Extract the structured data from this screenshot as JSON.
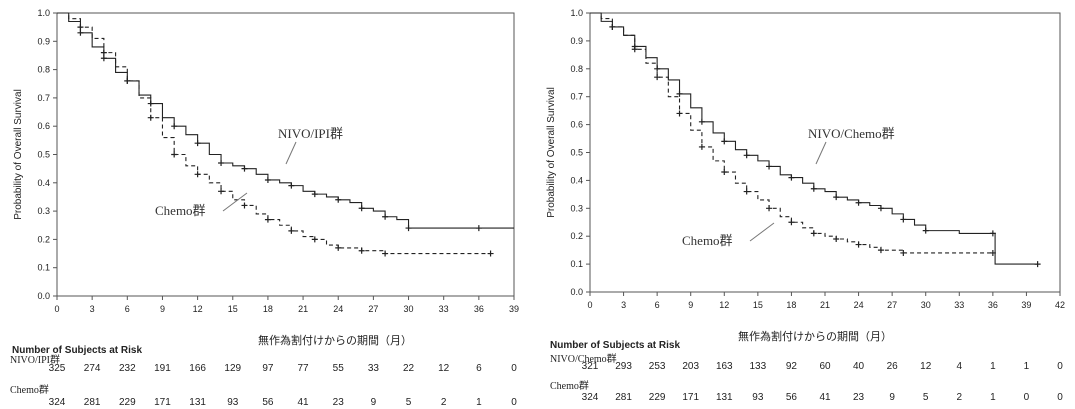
{
  "chart_data": [
    {
      "type": "line",
      "subtype": "kaplan-meier",
      "ylabel": "Probability of Overall Survival",
      "xlabel": "無作為割付けからの期間（月）",
      "ylim": [
        0,
        1.0
      ],
      "yticks": [
        "0.0",
        "0.1",
        "0.2",
        "0.3",
        "0.4",
        "0.5",
        "0.6",
        "0.7",
        "0.8",
        "0.9",
        "1.0"
      ],
      "xlim": [
        0,
        39
      ],
      "xticks": [
        "0",
        "3",
        "6",
        "9",
        "12",
        "15",
        "18",
        "21",
        "24",
        "27",
        "30",
        "33",
        "36",
        "39"
      ],
      "series": [
        {
          "name": "NIVO/IPI群",
          "color": "#222222",
          "dash": false,
          "points": [
            [
              0,
              1.0
            ],
            [
              1,
              0.97
            ],
            [
              2,
              0.93
            ],
            [
              3,
              0.88
            ],
            [
              4,
              0.84
            ],
            [
              5,
              0.79
            ],
            [
              6,
              0.76
            ],
            [
              7,
              0.71
            ],
            [
              8,
              0.68
            ],
            [
              9,
              0.63
            ],
            [
              10,
              0.6
            ],
            [
              11,
              0.57
            ],
            [
              12,
              0.54
            ],
            [
              13,
              0.5
            ],
            [
              14,
              0.47
            ],
            [
              15,
              0.46
            ],
            [
              16,
              0.45
            ],
            [
              17,
              0.43
            ],
            [
              18,
              0.41
            ],
            [
              19,
              0.4
            ],
            [
              20,
              0.39
            ],
            [
              21,
              0.37
            ],
            [
              22,
              0.36
            ],
            [
              23,
              0.35
            ],
            [
              24,
              0.34
            ],
            [
              25,
              0.33
            ],
            [
              26,
              0.31
            ],
            [
              27,
              0.3
            ],
            [
              28,
              0.28
            ],
            [
              29,
              0.27
            ],
            [
              30,
              0.24
            ],
            [
              33,
              0.24
            ],
            [
              36,
              0.24
            ],
            [
              39,
              0.24
            ]
          ]
        },
        {
          "name": "Chemo群",
          "color": "#222222",
          "dash": true,
          "points": [
            [
              0,
              1.0
            ],
            [
              1,
              0.98
            ],
            [
              2,
              0.95
            ],
            [
              3,
              0.91
            ],
            [
              4,
              0.86
            ],
            [
              5,
              0.81
            ],
            [
              6,
              0.76
            ],
            [
              7,
              0.7
            ],
            [
              8,
              0.63
            ],
            [
              9,
              0.56
            ],
            [
              10,
              0.5
            ],
            [
              11,
              0.46
            ],
            [
              12,
              0.43
            ],
            [
              13,
              0.4
            ],
            [
              14,
              0.37
            ],
            [
              15,
              0.34
            ],
            [
              16,
              0.32
            ],
            [
              17,
              0.29
            ],
            [
              18,
              0.27
            ],
            [
              19,
              0.25
            ],
            [
              20,
              0.23
            ],
            [
              21,
              0.21
            ],
            [
              22,
              0.2
            ],
            [
              23,
              0.18
            ],
            [
              24,
              0.17
            ],
            [
              25,
              0.17
            ],
            [
              26,
              0.16
            ],
            [
              27,
              0.16
            ],
            [
              28,
              0.15
            ],
            [
              33,
              0.15
            ],
            [
              37,
              0.15
            ]
          ]
        }
      ],
      "labels": {
        "top": "NIVO/IPI群",
        "bottom": "Chemo群"
      },
      "risk_table": {
        "title": "Number of Subjects at Risk",
        "groups": [
          {
            "name": "NIVO/IPI群",
            "values": [
              "325",
              "274",
              "232",
              "191",
              "166",
              "129",
              "97",
              "77",
              "55",
              "33",
              "22",
              "12",
              "6",
              "0"
            ]
          },
          {
            "name": "Chemo群",
            "values": [
              "324",
              "281",
              "229",
              "171",
              "131",
              "93",
              "56",
              "41",
              "23",
              "9",
              "5",
              "2",
              "1",
              "0"
            ]
          }
        ]
      }
    },
    {
      "type": "line",
      "subtype": "kaplan-meier",
      "ylabel": "Probability of Overall Survival",
      "xlabel": "無作為割付けからの期間（月）",
      "ylim": [
        0,
        1.0
      ],
      "yticks": [
        "0.0",
        "0.1",
        "0.2",
        "0.3",
        "0.4",
        "0.5",
        "0.6",
        "0.7",
        "0.8",
        "0.9",
        "1.0"
      ],
      "xlim": [
        0,
        42
      ],
      "xticks": [
        "0",
        "3",
        "6",
        "9",
        "12",
        "15",
        "18",
        "21",
        "24",
        "27",
        "30",
        "33",
        "36",
        "39",
        "42"
      ],
      "series": [
        {
          "name": "NIVO/Chemo群",
          "color": "#222222",
          "dash": false,
          "points": [
            [
              0,
              1.0
            ],
            [
              1,
              0.97
            ],
            [
              2,
              0.95
            ],
            [
              3,
              0.92
            ],
            [
              4,
              0.88
            ],
            [
              5,
              0.84
            ],
            [
              6,
              0.8
            ],
            [
              7,
              0.76
            ],
            [
              8,
              0.71
            ],
            [
              9,
              0.66
            ],
            [
              10,
              0.61
            ],
            [
              11,
              0.57
            ],
            [
              12,
              0.54
            ],
            [
              13,
              0.51
            ],
            [
              14,
              0.49
            ],
            [
              15,
              0.47
            ],
            [
              16,
              0.45
            ],
            [
              17,
              0.42
            ],
            [
              18,
              0.41
            ],
            [
              19,
              0.39
            ],
            [
              20,
              0.37
            ],
            [
              21,
              0.36
            ],
            [
              22,
              0.34
            ],
            [
              23,
              0.33
            ],
            [
              24,
              0.32
            ],
            [
              25,
              0.31
            ],
            [
              26,
              0.3
            ],
            [
              27,
              0.28
            ],
            [
              28,
              0.26
            ],
            [
              29,
              0.24
            ],
            [
              30,
              0.22
            ],
            [
              33,
              0.21
            ],
            [
              36,
              0.21
            ],
            [
              36.2,
              0.1
            ],
            [
              40,
              0.1
            ]
          ]
        },
        {
          "name": "Chemo群",
          "color": "#222222",
          "dash": true,
          "points": [
            [
              0,
              1.0
            ],
            [
              1,
              0.98
            ],
            [
              2,
              0.95
            ],
            [
              3,
              0.92
            ],
            [
              4,
              0.87
            ],
            [
              5,
              0.82
            ],
            [
              6,
              0.77
            ],
            [
              7,
              0.7
            ],
            [
              8,
              0.64
            ],
            [
              9,
              0.58
            ],
            [
              10,
              0.52
            ],
            [
              11,
              0.47
            ],
            [
              12,
              0.43
            ],
            [
              13,
              0.39
            ],
            [
              14,
              0.36
            ],
            [
              15,
              0.33
            ],
            [
              16,
              0.3
            ],
            [
              17,
              0.27
            ],
            [
              18,
              0.25
            ],
            [
              19,
              0.23
            ],
            [
              20,
              0.21
            ],
            [
              21,
              0.2
            ],
            [
              22,
              0.19
            ],
            [
              23,
              0.18
            ],
            [
              24,
              0.17
            ],
            [
              25,
              0.16
            ],
            [
              26,
              0.15
            ],
            [
              27,
              0.15
            ],
            [
              28,
              0.14
            ],
            [
              33,
              0.14
            ],
            [
              36,
              0.14
            ]
          ]
        }
      ],
      "labels": {
        "top": "NIVO/Chemo群",
        "bottom": "Chemo群"
      },
      "risk_table": {
        "title": "Number of Subjects at Risk",
        "groups": [
          {
            "name": "NIVO/Chemo群",
            "values": [
              "321",
              "293",
              "253",
              "203",
              "163",
              "133",
              "92",
              "60",
              "40",
              "26",
              "12",
              "4",
              "1",
              "1",
              "0"
            ]
          },
          {
            "name": "Chemo群",
            "values": [
              "324",
              "281",
              "229",
              "171",
              "131",
              "93",
              "56",
              "41",
              "23",
              "9",
              "5",
              "2",
              "1",
              "0",
              "0"
            ]
          }
        ]
      }
    }
  ]
}
